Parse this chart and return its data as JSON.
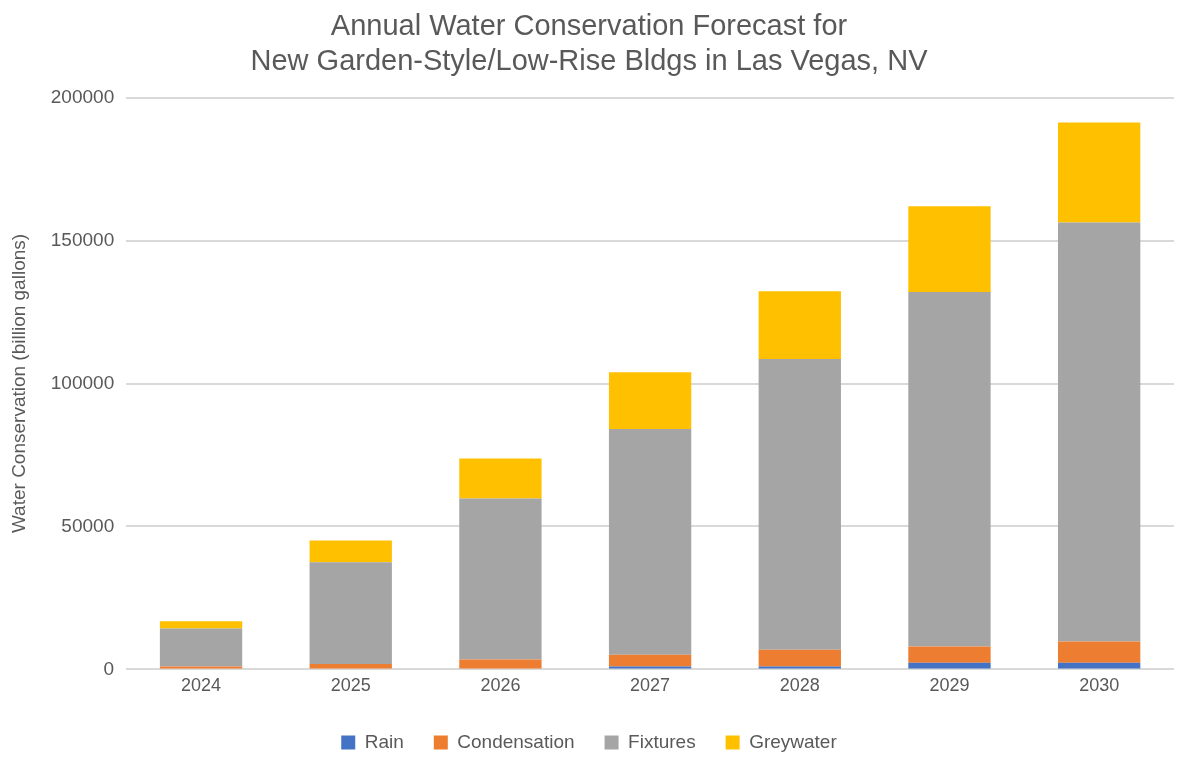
{
  "chart_data": {
    "type": "bar",
    "title": [
      "Annual Water Conservation Forecast for",
      "New Garden-Style/Low-Rise Bldgs in Las Vegas, NV"
    ],
    "ylabel": "Water Conservation (billion gallons)",
    "categories": [
      "2024",
      "2025",
      "2026",
      "2027",
      "2028",
      "2029",
      "2030"
    ],
    "stacked": true,
    "series": [
      {
        "name": "Rain",
        "color": "#4472c4",
        "values": [
          null,
          null,
          null,
          1000,
          1000,
          2300,
          2300
        ]
      },
      {
        "name": "Condensation",
        "color": "#ed7d31",
        "values": [
          1000,
          1900,
          3500,
          4100,
          5900,
          5700,
          7500
        ]
      },
      {
        "name": "Fixtures",
        "color": "#a5a5a5",
        "values": [
          13300,
          35600,
          56300,
          79000,
          101700,
          124000,
          146500
        ]
      },
      {
        "name": "Greywater",
        "color": "#ffc000",
        "values": [
          2500,
          7600,
          14000,
          19800,
          23700,
          30000,
          35000
        ]
      }
    ],
    "ylim": [
      0,
      200000
    ],
    "yticks": [
      0,
      50000,
      100000,
      150000,
      200000
    ],
    "grid": "y",
    "legend": "bottom"
  }
}
